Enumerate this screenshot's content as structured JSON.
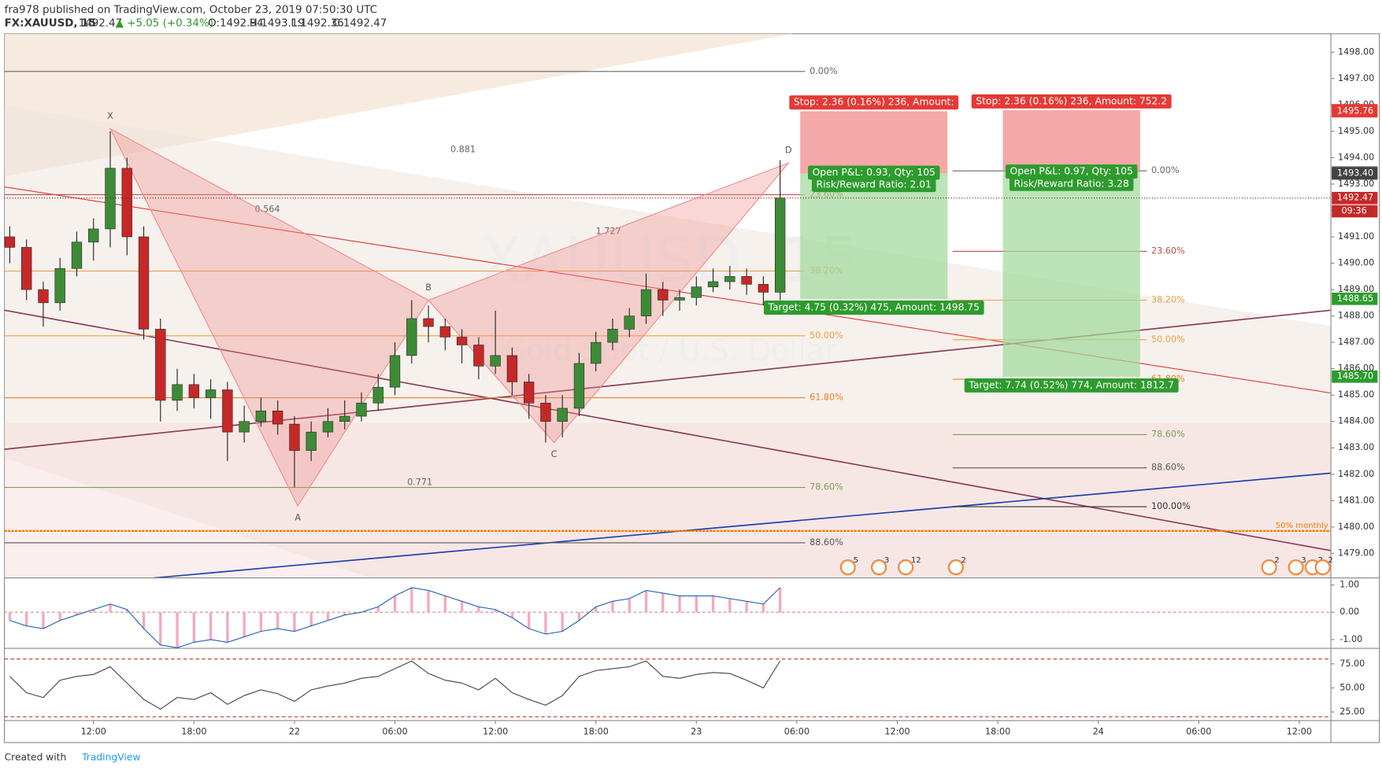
{
  "header": {
    "published": "fra978 published on TradingView.com, October 23, 2019 07:50:30 UTC",
    "symbol": "FX:XAUUSD, 15",
    "last": "1492.47",
    "change": "▲ +5.05 (+0.34%)",
    "open": "O:1492.94",
    "high": "H:1493.19",
    "low": "L:1492.36",
    "close": "C:1492.47"
  },
  "chart_data": {
    "type": "candlestick",
    "watermark": "XAUUSD, 15",
    "subtitle": "Gold Spot / U.S. Dollar",
    "x": [
      7,
      8,
      9,
      10,
      11,
      12,
      13,
      14,
      15,
      16,
      17,
      18,
      19,
      20,
      21,
      22,
      23,
      24,
      25,
      26,
      27,
      28,
      29,
      30,
      31,
      32,
      33,
      34,
      35,
      36,
      37,
      38,
      39,
      40,
      41,
      42,
      43,
      44,
      45,
      46,
      47,
      48,
      49,
      50,
      51,
      52,
      53
    ],
    "open": [
      1491.0,
      1490.6,
      1489.0,
      1488.5,
      1489.8,
      1490.8,
      1491.3,
      1493.6,
      1491.0,
      1487.5,
      1484.8,
      1485.4,
      1484.9,
      1485.2,
      1483.6,
      1484.0,
      1484.4,
      1483.9,
      1482.9,
      1483.6,
      1484.0,
      1484.2,
      1484.7,
      1485.3,
      1486.5,
      1487.9,
      1487.6,
      1487.2,
      1486.9,
      1486.1,
      1486.5,
      1485.5,
      1484.7,
      1484.0,
      1484.5,
      1486.2,
      1487.0,
      1487.5,
      1488.0,
      1489.0,
      1488.6,
      1488.7,
      1489.1,
      1489.3,
      1489.5,
      1489.2,
      1488.9
    ],
    "high": [
      1491.4,
      1490.9,
      1489.3,
      1490.2,
      1491.2,
      1491.7,
      1495.0,
      1494.0,
      1491.4,
      1487.9,
      1486.0,
      1485.8,
      1485.6,
      1485.5,
      1484.6,
      1484.9,
      1484.8,
      1484.2,
      1484.0,
      1484.5,
      1484.8,
      1485.1,
      1485.8,
      1487.0,
      1488.6,
      1488.4,
      1487.9,
      1487.5,
      1487.2,
      1488.2,
      1486.8,
      1485.8,
      1485.0,
      1485.0,
      1486.6,
      1487.4,
      1487.9,
      1488.3,
      1489.6,
      1489.3,
      1489.0,
      1489.5,
      1489.8,
      1489.9,
      1489.8,
      1489.5,
      1493.9
    ],
    "low": [
      1490.0,
      1488.6,
      1487.6,
      1488.2,
      1489.5,
      1490.1,
      1490.6,
      1490.3,
      1487.1,
      1484.0,
      1484.4,
      1484.5,
      1484.1,
      1482.5,
      1483.2,
      1483.8,
      1483.5,
      1481.5,
      1482.5,
      1483.4,
      1483.7,
      1484.0,
      1484.4,
      1485.0,
      1486.2,
      1487.0,
      1486.7,
      1486.2,
      1485.6,
      1485.8,
      1485.0,
      1484.1,
      1483.2,
      1483.4,
      1484.2,
      1485.9,
      1486.7,
      1487.2,
      1487.7,
      1488.0,
      1488.2,
      1488.4,
      1488.9,
      1489.0,
      1488.8,
      1488.4,
      1488.6
    ],
    "close": [
      1490.6,
      1489.0,
      1488.5,
      1489.8,
      1490.8,
      1491.3,
      1493.6,
      1491.0,
      1487.5,
      1484.8,
      1485.4,
      1484.9,
      1485.2,
      1483.6,
      1484.0,
      1484.4,
      1483.9,
      1482.9,
      1483.6,
      1484.0,
      1484.2,
      1484.7,
      1485.3,
      1486.5,
      1487.9,
      1487.6,
      1487.2,
      1486.9,
      1486.1,
      1486.5,
      1485.5,
      1484.7,
      1484.0,
      1484.5,
      1486.2,
      1487.0,
      1487.5,
      1488.0,
      1489.0,
      1488.6,
      1488.7,
      1489.1,
      1489.3,
      1489.5,
      1489.2,
      1488.9,
      1492.47
    ],
    "up_color": "#3d8b37",
    "down_color": "#c62828",
    "xlim": [
      6.68,
      85.89
    ],
    "xticks": [
      {
        "value": 12,
        "label": "12:00"
      },
      {
        "value": 18,
        "label": "18:00"
      },
      {
        "value": 24,
        "label": "22"
      },
      {
        "value": 30,
        "label": "06:00"
      },
      {
        "value": 36,
        "label": "12:00"
      },
      {
        "value": 42,
        "label": "18:00"
      },
      {
        "value": 48,
        "label": "23"
      },
      {
        "value": 54,
        "label": "06:00"
      },
      {
        "value": 60,
        "label": "12:00"
      },
      {
        "value": 66,
        "label": "18:00"
      },
      {
        "value": 72,
        "label": "24"
      },
      {
        "value": 78,
        "label": "06:00"
      },
      {
        "value": 84,
        "label": "12:00"
      }
    ],
    "ylim": [
      1478.07,
      1498.7
    ],
    "yticks": [
      {
        "value": 1479,
        "label": "1479.00"
      },
      {
        "value": 1480,
        "label": "1480.00"
      },
      {
        "value": 1481,
        "label": "1481.00"
      },
      {
        "value": 1482,
        "label": "1482.00"
      },
      {
        "value": 1483,
        "label": "1483.00"
      },
      {
        "value": 1484,
        "label": "1484.00"
      },
      {
        "value": 1485,
        "label": "1485.00"
      },
      {
        "value": 1486,
        "label": "1486.00"
      },
      {
        "value": 1487,
        "label": "1487.00"
      },
      {
        "value": 1488,
        "label": "1488.00"
      },
      {
        "value": 1489,
        "label": "1489.00"
      },
      {
        "value": 1490,
        "label": "1490.00"
      },
      {
        "value": 1491,
        "label": "1491.00"
      },
      {
        "value": 1492,
        "label": "1492.00"
      },
      {
        "value": 1493,
        "label": "1493.00"
      },
      {
        "value": 1494,
        "label": "1494.00"
      },
      {
        "value": 1495,
        "label": "1495.00"
      },
      {
        "value": 1496,
        "label": "1496.00"
      },
      {
        "value": 1497,
        "label": "1497.00"
      },
      {
        "value": 1498,
        "label": "1498.00"
      }
    ],
    "price_tags": [
      {
        "value": 1495.8,
        "label": "1495.80",
        "color": "#e53935"
      },
      {
        "value": 1495.76,
        "label": "1495.76",
        "color": "#e53935"
      },
      {
        "value": 1493.44,
        "label": "1493.44",
        "color": "#616161"
      },
      {
        "value": 1493.4,
        "label": "1493.40",
        "color": "#424242"
      },
      {
        "value": 1492.47,
        "label": "1492.47",
        "color": "#c62828"
      },
      {
        "value": 1488.65,
        "label": "1488.65",
        "color": "#2e9b2e"
      },
      {
        "value": 1485.7,
        "label": "1485.70",
        "color": "#2e9b2e"
      }
    ],
    "countdown": "09:36",
    "fib_left": {
      "x0": 6.68,
      "x1": 54.5,
      "levels": [
        {
          "value": 1497.27,
          "label": "0.00%",
          "color": "#666666"
        },
        {
          "value": 1492.6,
          "label": "23.60%",
          "color": "#c0504d"
        },
        {
          "value": 1489.7,
          "label": "38.20%",
          "color": "#e8a050"
        },
        {
          "value": 1487.25,
          "label": "50.00%",
          "color": "#f0a040"
        },
        {
          "value": 1484.9,
          "label": "61.80%",
          "color": "#f08020"
        },
        {
          "value": 1481.5,
          "label": "78.60%",
          "color": "#7aa050"
        },
        {
          "value": 1479.4,
          "label": "88.60%",
          "color": "#555555"
        }
      ]
    },
    "fib_right": {
      "x0": 63.3,
      "x1": 74.9,
      "levels": [
        {
          "value": 1493.5,
          "label": "0.00%",
          "color": "#666666"
        },
        {
          "value": 1490.45,
          "label": "23.60%",
          "color": "#c0504d"
        },
        {
          "value": 1488.6,
          "label": "38.20%",
          "color": "#e8a050"
        },
        {
          "value": 1487.1,
          "label": "50.00%",
          "color": "#f0a040"
        },
        {
          "value": 1485.6,
          "label": "61.80%",
          "color": "#f08020"
        },
        {
          "value": 1483.5,
          "label": "78.60%",
          "color": "#7aa050"
        },
        {
          "value": 1482.24,
          "label": "88.60%",
          "color": "#555555"
        },
        {
          "value": 1480.77,
          "label": "100.00%",
          "color": "#333333"
        }
      ]
    },
    "pattern": [
      {
        "label": "X",
        "x": 13,
        "value": 1495.1
      },
      {
        "label": "A",
        "x": 24.2,
        "value": 1480.8
      },
      {
        "label": "B",
        "x": 32,
        "value": 1488.6
      },
      {
        "label": "C",
        "x": 39.5,
        "value": 1483.2
      },
      {
        "label": "D",
        "x": 53.5,
        "value": 1493.8
      }
    ],
    "pattern_ratios": [
      "0.881",
      "0.564",
      "1.727",
      "0.771"
    ],
    "positions": [
      {
        "x0": 54.2,
        "x1": 63.0,
        "entry": 1493.4,
        "stop": 1495.76,
        "target": 1488.65,
        "stop_label": "Stop: 2.36 (0.16%) 236, Amount:",
        "pnl_label": "Open P&L: 0.93, Qty: 105",
        "ratio_label": "Risk/Reward Ratio: 2.01",
        "target_label": "Target: 4.75 (0.32%) 475, Amount: 1498.75"
      },
      {
        "x0": 66.3,
        "x1": 74.5,
        "entry": 1493.44,
        "stop": 1495.8,
        "target": 1485.7,
        "stop_label": "Stop: 2.36 (0.16%) 236, Amount: 752.2",
        "pnl_label": "Open P&L: 0.97, Qty: 105",
        "ratio_label": "Risk/Reward Ratio: 3.28",
        "target_label": "Target: 7.74 (0.52%) 774, Amount: 1812.7"
      }
    ],
    "monthly": {
      "value": 1479.85,
      "label": "50% monthly"
    },
    "events": [
      {
        "x": 57.05,
        "label": "5"
      },
      {
        "x": 58.9,
        "label": "3"
      },
      {
        "x": 60.5,
        "label": "12"
      },
      {
        "x": 63.5,
        "label": "2"
      },
      {
        "x": 82.2,
        "label": "2"
      },
      {
        "x": 83.8,
        "label": "3"
      },
      {
        "x": 84.8,
        "label": "2"
      },
      {
        "x": 85.4,
        "label": "2"
      }
    ],
    "macd": {
      "ylim": [
        -1.29,
        1.226
      ],
      "yticks": [
        {
          "value": 1,
          "label": "1.00"
        },
        {
          "value": 0,
          "label": "0.00"
        },
        {
          "value": -1,
          "label": "-1.00"
        }
      ],
      "values": [
        -0.3,
        -0.5,
        -0.6,
        -0.3,
        -0.1,
        0.1,
        0.3,
        0.1,
        -0.6,
        -1.2,
        -1.3,
        -1.1,
        -1.0,
        -1.1,
        -0.9,
        -0.7,
        -0.6,
        -0.7,
        -0.5,
        -0.3,
        -0.1,
        0.0,
        0.2,
        0.6,
        0.9,
        0.8,
        0.6,
        0.4,
        0.2,
        0.1,
        -0.2,
        -0.6,
        -0.8,
        -0.7,
        -0.3,
        0.2,
        0.4,
        0.5,
        0.8,
        0.7,
        0.6,
        0.6,
        0.6,
        0.5,
        0.4,
        0.3,
        0.9
      ]
    },
    "rsi": {
      "ylim": [
        17.0,
        90.2
      ],
      "yticks": [
        {
          "value": 75,
          "label": "75.00"
        },
        {
          "value": 50,
          "label": "50.00"
        },
        {
          "value": 25,
          "label": "25.00"
        }
      ],
      "bands": [
        80,
        20
      ],
      "values": [
        62,
        45,
        40,
        58,
        62,
        64,
        72,
        55,
        38,
        28,
        40,
        38,
        45,
        33,
        42,
        48,
        44,
        36,
        48,
        52,
        55,
        60,
        62,
        70,
        78,
        65,
        58,
        55,
        48,
        60,
        45,
        38,
        32,
        42,
        62,
        68,
        70,
        72,
        78,
        62,
        60,
        64,
        66,
        65,
        58,
        50,
        78
      ]
    }
  },
  "footer": {
    "created": "Created with",
    "brand": "TradingView"
  }
}
